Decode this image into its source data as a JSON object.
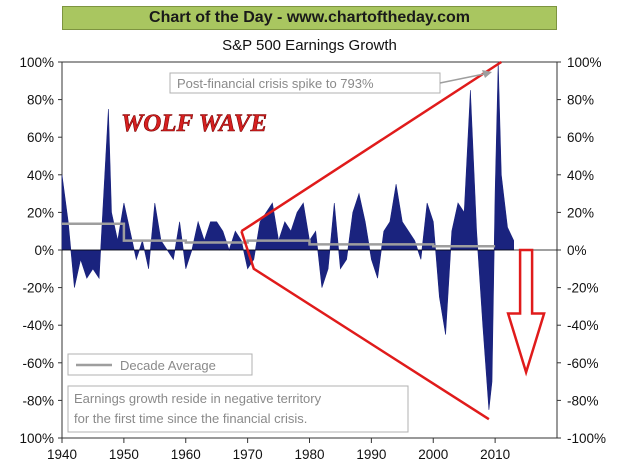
{
  "banner": "Chart of the Day - www.chartoftheday.com",
  "chart_data": {
    "type": "area",
    "title": "S&P 500 Earnings Growth",
    "xlabel": "",
    "ylabel": "",
    "xlim": [
      1940,
      2020
    ],
    "ylim": [
      -100,
      100
    ],
    "x_ticks": [
      "1940",
      "1950",
      "1960",
      "1970",
      "1980",
      "1990",
      "2000",
      "2010"
    ],
    "y_ticks_left": [
      "100%",
      "80%",
      "60%",
      "40%",
      "20%",
      "0%",
      "-20%",
      "-40%",
      "-60%",
      "-80%",
      "100%"
    ],
    "y_ticks_right": [
      "100%",
      "80%",
      "60%",
      "40%",
      "20%",
      "0%",
      "-20%",
      "-40%",
      "-60%",
      "-80%",
      "-100%"
    ],
    "grid": false,
    "series": [
      {
        "name": "",
        "color": "#1a237e",
        "x": [
          1940,
          1941,
          1942,
          1943,
          1944,
          1945,
          1946,
          1947,
          1947.5,
          1948,
          1949,
          1950,
          1951,
          1952,
          1953,
          1954,
          1955,
          1956,
          1957,
          1958,
          1959,
          1960,
          1961,
          1962,
          1963,
          1964,
          1965,
          1966,
          1967,
          1968,
          1969,
          1970,
          1971,
          1972,
          1973,
          1974,
          1975,
          1976,
          1977,
          1978,
          1979,
          1980,
          1981,
          1982,
          1983,
          1984,
          1985,
          1986,
          1987,
          1988,
          1989,
          1990,
          1991,
          1992,
          1993,
          1994,
          1995,
          1996,
          1997,
          1998,
          1999,
          2000,
          2001,
          2002,
          2003,
          2004,
          2005,
          2006,
          2007,
          2008,
          2009,
          2009.5,
          2010,
          2010.5,
          2011,
          2012,
          2013
        ],
        "values": [
          40,
          15,
          -20,
          -5,
          -15,
          -10,
          -15,
          45,
          75,
          20,
          5,
          25,
          10,
          -5,
          5,
          -10,
          25,
          5,
          0,
          -5,
          15,
          -10,
          0,
          15,
          5,
          15,
          15,
          10,
          0,
          10,
          5,
          -10,
          -5,
          15,
          20,
          25,
          5,
          15,
          10,
          20,
          25,
          5,
          10,
          -20,
          -10,
          25,
          -10,
          -5,
          20,
          30,
          15,
          -5,
          -15,
          10,
          15,
          35,
          15,
          10,
          5,
          -5,
          25,
          15,
          -25,
          -45,
          10,
          25,
          20,
          85,
          10,
          -40,
          -85,
          -70,
          30,
          100,
          40,
          12,
          5
        ]
      },
      {
        "name": "Decade Average",
        "color": "#9e9e9e",
        "x": [
          1940,
          1950,
          1950,
          1960,
          1960,
          1970,
          1970,
          1980,
          1980,
          1990,
          1990,
          2000,
          2000,
          2010
        ],
        "values": [
          14,
          14,
          5,
          5,
          4,
          4,
          5,
          5,
          3,
          3,
          3,
          3,
          2,
          2
        ]
      }
    ],
    "legend": "bottom-left",
    "annotations": {
      "spike": "Post-financial crisis spike to 793%",
      "wolf_wave": "WOLF WAVE",
      "note_line1": "Earnings growth reside in negative territory",
      "note_line2": "for the first time since the financial crisis."
    },
    "wolf_wave_lines": {
      "color": "#e01b1b",
      "top": [
        [
          1969,
          10
        ],
        [
          2011,
          100
        ]
      ],
      "bottom": [
        [
          1969,
          10
        ],
        [
          1971,
          -10
        ],
        [
          2009,
          -90
        ]
      ]
    },
    "forecast_arrow": {
      "color": "#e01b1b",
      "x": 2015,
      "from": 0,
      "to": -65
    }
  }
}
